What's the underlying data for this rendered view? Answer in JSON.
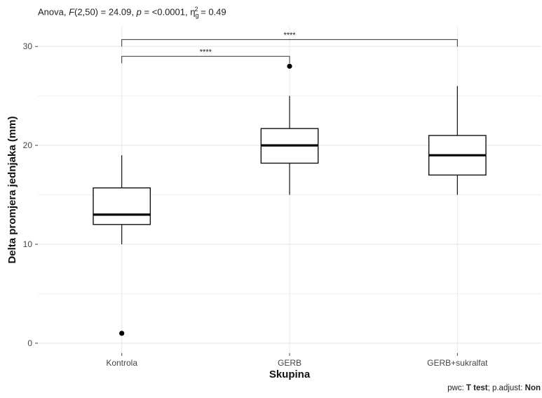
{
  "chart_data": {
    "type": "box",
    "subtitle": {
      "prefix": "Anova, ",
      "stat_name": "F",
      "df": "(2,50)",
      "stat_value": " = 24.09, ",
      "p_label": "p",
      "p_value": " = <0.0001, ",
      "effect_label": "η",
      "effect_sub": "g",
      "effect_sup": "2",
      "effect_value": " = 0.49"
    },
    "caption": {
      "prefix": "pwc: ",
      "method": "T test",
      "middle": "; p.adjust: ",
      "adjust": "Non"
    },
    "xlabel": "Skupina",
    "ylabel": "Delta promjera jednjaka (mm)",
    "categories": [
      "Kontrola",
      "GERB",
      "GERB+sukralfat"
    ],
    "ylim": [
      -1,
      32
    ],
    "yticks": [
      0,
      10,
      20,
      30
    ],
    "grid": true,
    "boxes": [
      {
        "category": "Kontrola",
        "lower_whisker": 10,
        "q1": 12,
        "median": 13,
        "q3": 15.7,
        "upper_whisker": 19,
        "outliers": [
          1
        ]
      },
      {
        "category": "GERB",
        "lower_whisker": 15,
        "q1": 18.2,
        "median": 20,
        "q3": 21.7,
        "upper_whisker": 25,
        "outliers": [
          28
        ]
      },
      {
        "category": "GERB+sukralfat",
        "lower_whisker": 15,
        "q1": 17,
        "median": 19,
        "q3": 21,
        "upper_whisker": 26,
        "outliers": []
      }
    ],
    "significance": [
      {
        "from": "Kontrola",
        "to": "GERB",
        "y": 29,
        "label": "****"
      },
      {
        "from": "Kontrola",
        "to": "GERB+sukralfat",
        "y": 30.7,
        "label": "****"
      }
    ]
  }
}
